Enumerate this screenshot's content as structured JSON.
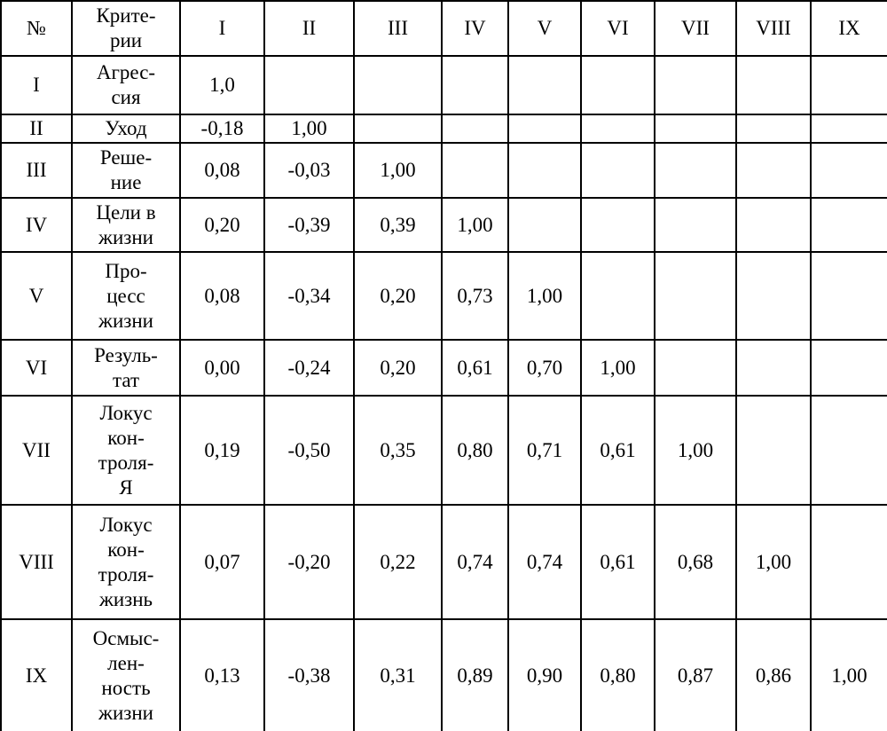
{
  "table": {
    "columns": [
      "№",
      "Крите-\nрии",
      "I",
      "II",
      "III",
      "IV",
      "V",
      "VI",
      "VII",
      "VIII",
      "IX"
    ],
    "rows": [
      {
        "num": "I",
        "label": "Агрес-\nсия",
        "values": [
          "1,0"
        ]
      },
      {
        "num": "II",
        "label": "Уход",
        "values": [
          "-0,18",
          "1,00"
        ]
      },
      {
        "num": "III",
        "label": "Реше-\nние",
        "values": [
          "0,08",
          "-0,03",
          "1,00"
        ]
      },
      {
        "num": "IV",
        "label": "Цели в\nжизни",
        "values": [
          "0,20",
          "-0,39",
          "0,39",
          "1,00"
        ]
      },
      {
        "num": "V",
        "label": "Про-\nцесс\nжизни",
        "values": [
          "0,08",
          "-0,34",
          "0,20",
          "0,73",
          "1,00"
        ]
      },
      {
        "num": "VI",
        "label": "Резуль-\nтат",
        "values": [
          "0,00",
          "-0,24",
          "0,20",
          "0,61",
          "0,70",
          "1,00"
        ]
      },
      {
        "num": "VII",
        "label": "Локус\nкон-\nтроля-\nЯ",
        "values": [
          "0,19",
          "-0,50",
          "0,35",
          "0,80",
          "0,71",
          "0,61",
          "1,00"
        ]
      },
      {
        "num": "VIII",
        "label": "Локус\nкон-\nтроля-\nжизнь",
        "values": [
          "0,07",
          "-0,20",
          "0,22",
          "0,74",
          "0,74",
          "0,61",
          "0,68",
          "1,00"
        ]
      },
      {
        "num": "IX",
        "label": "Осмыс-\nлен-\nность\nжизни",
        "values": [
          "0,13",
          "-0,38",
          "0,31",
          "0,89",
          "0,90",
          "0,80",
          "0,87",
          "0,86",
          "1,00"
        ]
      }
    ],
    "text_color": "#000000",
    "border_color": "#000000",
    "background_color": "#ffffff"
  },
  "chart_data": {
    "type": "table",
    "columns": [
      "№",
      "Критерии",
      "I",
      "II",
      "III",
      "IV",
      "V",
      "VI",
      "VII",
      "VIII",
      "IX"
    ],
    "row_ids": [
      "I",
      "II",
      "III",
      "IV",
      "V",
      "VI",
      "VII",
      "VIII",
      "IX"
    ],
    "criteria": [
      "Агрессия",
      "Уход",
      "Решение",
      "Цели в жизни",
      "Процесс жизни",
      "Результат",
      "Локус контроля-Я",
      "Локус контроля-жизнь",
      "Осмысленность жизни"
    ],
    "matrix": [
      [
        1.0
      ],
      [
        -0.18,
        1.0
      ],
      [
        0.08,
        -0.03,
        1.0
      ],
      [
        0.2,
        -0.39,
        0.39,
        1.0
      ],
      [
        0.08,
        -0.34,
        0.2,
        0.73,
        1.0
      ],
      [
        0.0,
        -0.24,
        0.2,
        0.61,
        0.7,
        1.0
      ],
      [
        0.19,
        -0.5,
        0.35,
        0.8,
        0.71,
        0.61,
        1.0
      ],
      [
        0.07,
        -0.2,
        0.22,
        0.74,
        0.74,
        0.61,
        0.68,
        1.0
      ],
      [
        0.13,
        -0.38,
        0.31,
        0.89,
        0.9,
        0.8,
        0.87,
        0.86,
        1.0
      ]
    ],
    "notes": "Lower-triangular correlation matrix; decimal separator rendered as comma; diagonal cell I rendered as 1,0 and all others as 1,00"
  }
}
